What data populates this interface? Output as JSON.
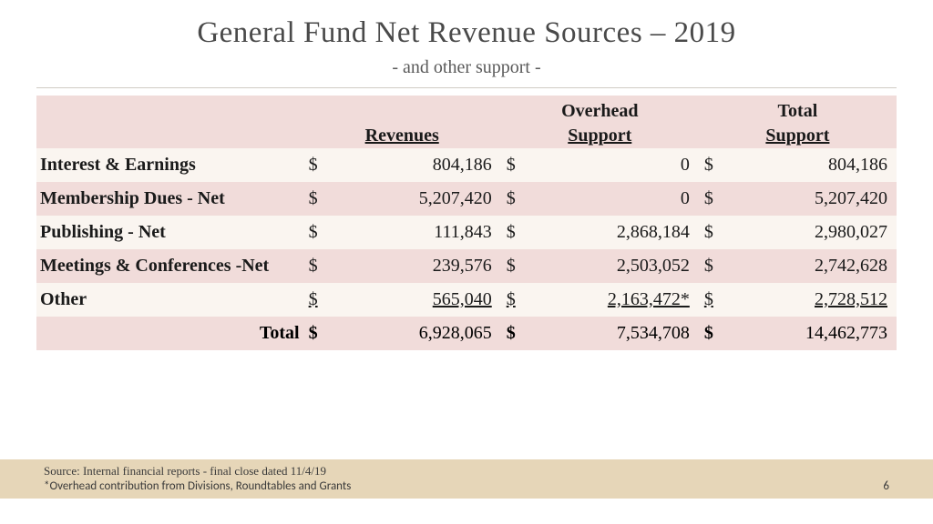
{
  "title": "General Fund Net Revenue Sources – 2019",
  "subtitle": "- and other support -",
  "colors": {
    "header_bg": "#f1dcda",
    "row_a_bg": "#faf5f0",
    "row_b_bg": "#f1dcda",
    "footer_bar_bg": "#e6d6b8",
    "title_color": "#4a4a4a",
    "text_color": "#1a1a1a"
  },
  "fontsize": {
    "title": 33,
    "subtitle": 20,
    "body": 20,
    "footer": 13
  },
  "table": {
    "type": "table",
    "columns": [
      {
        "top": "",
        "bottom": "",
        "align": "left"
      },
      {
        "top": "",
        "bottom": "Revenues",
        "align": "right"
      },
      {
        "top": "Overhead",
        "bottom": "Support",
        "align": "right"
      },
      {
        "top": "Total",
        "bottom": "Support",
        "align": "right"
      }
    ],
    "currency": "$",
    "rows": [
      {
        "label": "Interest & Earnings",
        "revenues": "804,186",
        "overhead": "0",
        "total": "804,186"
      },
      {
        "label": "Membership Dues - Net",
        "revenues": "5,207,420",
        "overhead": "0",
        "total": "5,207,420"
      },
      {
        "label": "Publishing - Net",
        "revenues": "111,843",
        "overhead": "2,868,184",
        "total": "2,980,027"
      },
      {
        "label": "Meetings & Conferences -Net",
        "revenues": "239,576",
        "overhead": "2,503,052",
        "total": "2,742,628"
      },
      {
        "label": "Other",
        "revenues": "565,040",
        "overhead": "2,163,472*",
        "total": "2,728,512",
        "underline": true
      }
    ],
    "total": {
      "label": "Total",
      "revenues": "6,928,065",
      "overhead": "7,534,708",
      "total": "14,462,773"
    }
  },
  "footer": {
    "line1": "Source: Internal financial reports - final close dated 11/4/19",
    "line2": "*Overhead contribution from Divisions, Roundtables and Grants",
    "page": "6"
  }
}
